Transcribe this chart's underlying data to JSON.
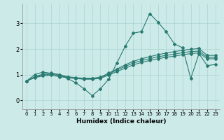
{
  "x": [
    0,
    1,
    2,
    3,
    4,
    5,
    6,
    7,
    8,
    9,
    10,
    11,
    12,
    13,
    14,
    15,
    16,
    17,
    18,
    19,
    20,
    21,
    22,
    23
  ],
  "line1": [
    0.75,
    1.0,
    1.1,
    1.05,
    1.0,
    0.85,
    0.68,
    0.45,
    0.18,
    0.45,
    0.82,
    1.45,
    2.1,
    2.62,
    2.68,
    3.38,
    3.05,
    2.68,
    2.2,
    2.05,
    0.85,
    1.82,
    1.35,
    1.4
  ],
  "line2": [
    0.75,
    0.88,
    0.95,
    0.98,
    0.92,
    0.88,
    0.85,
    0.82,
    0.82,
    0.86,
    0.98,
    1.12,
    1.25,
    1.38,
    1.48,
    1.55,
    1.62,
    1.68,
    1.72,
    1.78,
    1.82,
    1.85,
    1.62,
    1.62
  ],
  "line3": [
    0.75,
    0.9,
    0.98,
    1.02,
    0.96,
    0.9,
    0.86,
    0.84,
    0.84,
    0.88,
    1.02,
    1.18,
    1.32,
    1.45,
    1.55,
    1.62,
    1.7,
    1.75,
    1.8,
    1.86,
    1.9,
    1.92,
    1.68,
    1.68
  ],
  "line4": [
    0.75,
    0.92,
    1.02,
    1.06,
    1.0,
    0.92,
    0.88,
    0.86,
    0.86,
    0.9,
    1.06,
    1.22,
    1.38,
    1.52,
    1.62,
    1.7,
    1.78,
    1.84,
    1.9,
    1.95,
    1.99,
    2.02,
    1.75,
    1.75
  ],
  "line_color": "#2a7a72",
  "background_color": "#cceae8",
  "grid_color": "#aad4d0",
  "xlabel": "Humidex (Indice chaleur)",
  "xlim": [
    -0.5,
    23.5
  ],
  "ylim": [
    -0.35,
    3.75
  ],
  "yticks": [
    0,
    1,
    2,
    3
  ],
  "xticks": [
    0,
    1,
    2,
    3,
    4,
    5,
    6,
    7,
    8,
    9,
    10,
    11,
    12,
    13,
    14,
    15,
    16,
    17,
    18,
    19,
    20,
    21,
    22,
    23
  ],
  "xtick_labels": [
    "0",
    "1",
    "2",
    "3",
    "4",
    "5",
    "6",
    "7",
    "8",
    "9",
    "10",
    "11",
    "12",
    "13",
    "14",
    "15",
    "16",
    "17",
    "18",
    "19",
    "20",
    "21",
    "22",
    "23"
  ]
}
